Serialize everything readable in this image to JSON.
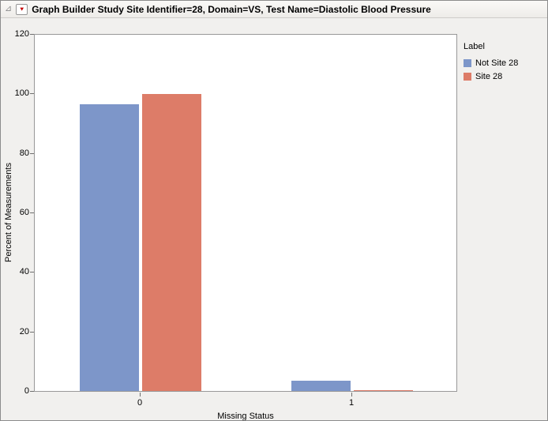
{
  "window": {
    "title": "Graph Builder Study Site Identifier=28, Domain=VS, Test Name=Diastolic Blood Pressure"
  },
  "icons": {
    "disclosure_glyph": "⊿",
    "red_triangle_glyph": "▼"
  },
  "chart_data": {
    "type": "bar",
    "title": "Graph Builder Study Site Identifier=28, Domain=VS, Test Name=Diastolic Blood Pressure",
    "categories": [
      "0",
      "1"
    ],
    "series": [
      {
        "name": "Not Site 28",
        "color": "#7D96C9",
        "values": [
          96.5,
          3.5
        ]
      },
      {
        "name": "Site 28",
        "color": "#DD7C68",
        "values": [
          99.7,
          0.3
        ]
      }
    ],
    "xlabel": "Missing Status",
    "ylabel": "Percent of Measurements",
    "ylim": [
      0,
      120
    ],
    "yticks": [
      0,
      20,
      40,
      60,
      80,
      100,
      120
    ],
    "grid": false,
    "legend": {
      "title": "Label",
      "position": "right",
      "entries": [
        "Not Site 28",
        "Site 28"
      ]
    }
  }
}
